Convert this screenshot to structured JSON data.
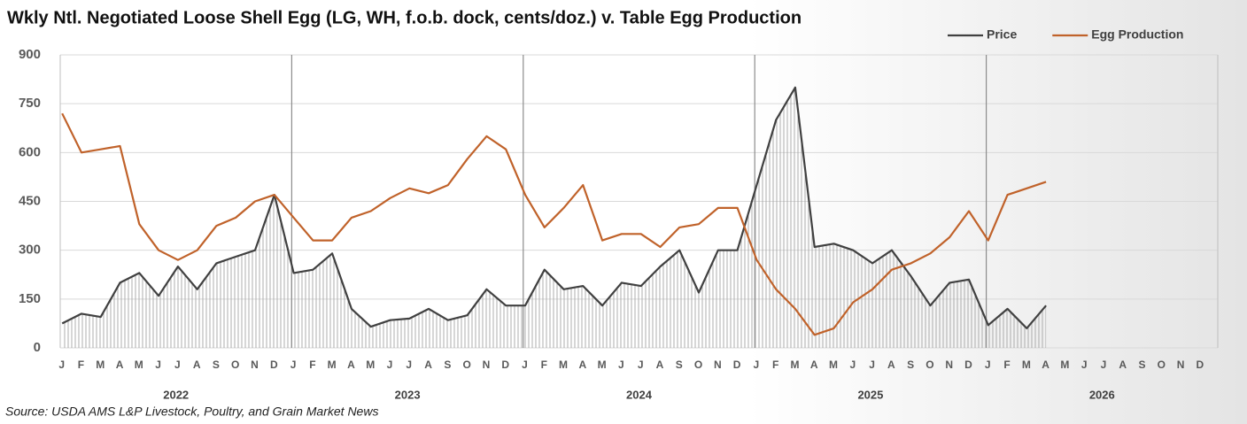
{
  "chart_data": {
    "type": "line",
    "title": "Wkly Ntl. Negotiated Loose Shell Egg (LG, WH, f.o.b. dock, cents/doz.) v. Table Egg Production",
    "source": "Source: USDA AMS L&P Livestock, Poultry, and Grain Market News",
    "categories": [
      "J",
      "F",
      "M",
      "A",
      "M",
      "J",
      "J",
      "A",
      "S",
      "O",
      "N",
      "D",
      "J",
      "F",
      "M",
      "A",
      "M",
      "J",
      "J",
      "A",
      "S",
      "O",
      "N",
      "D",
      "J",
      "F",
      "M",
      "A",
      "M",
      "J",
      "J",
      "A",
      "S",
      "O",
      "N",
      "D",
      "J",
      "F",
      "M",
      "A",
      "M",
      "J",
      "J",
      "A",
      "S",
      "O",
      "N",
      "D",
      "J",
      "F",
      "M",
      "A",
      "M",
      "J",
      "J",
      "A",
      "S",
      "O",
      "N",
      "D"
    ],
    "years": [
      "2022",
      "2023",
      "2024",
      "2025",
      "2026"
    ],
    "ylim": [
      0,
      900
    ],
    "yticks": [
      0,
      150,
      300,
      450,
      600,
      750,
      900
    ],
    "grid": true,
    "legend": "top-right",
    "series": [
      {
        "name": "Price",
        "color": "#404040",
        "area": true,
        "values": [
          75,
          105,
          95,
          200,
          230,
          160,
          250,
          180,
          260,
          280,
          300,
          470,
          230,
          240,
          290,
          120,
          65,
          85,
          90,
          120,
          85,
          100,
          180,
          130,
          130,
          240,
          180,
          190,
          130,
          200,
          190,
          250,
          300,
          170,
          300,
          300,
          500,
          700,
          800,
          310,
          320,
          300,
          260,
          300,
          220,
          130,
          200,
          210,
          70,
          120,
          60,
          130,
          null,
          null,
          null,
          null,
          null,
          null,
          null,
          null
        ]
      },
      {
        "name": "Egg Production",
        "color": "#c0622a",
        "values": [
          720,
          600,
          610,
          620,
          380,
          300,
          270,
          300,
          375,
          400,
          450,
          470,
          400,
          330,
          330,
          400,
          420,
          460,
          490,
          475,
          500,
          580,
          650,
          610,
          470,
          370,
          430,
          500,
          330,
          350,
          350,
          310,
          370,
          380,
          430,
          430,
          270,
          180,
          120,
          40,
          60,
          140,
          180,
          240,
          260,
          290,
          340,
          420,
          330,
          470,
          490,
          510,
          null,
          null,
          null,
          null,
          null,
          null,
          null,
          null
        ]
      }
    ]
  }
}
